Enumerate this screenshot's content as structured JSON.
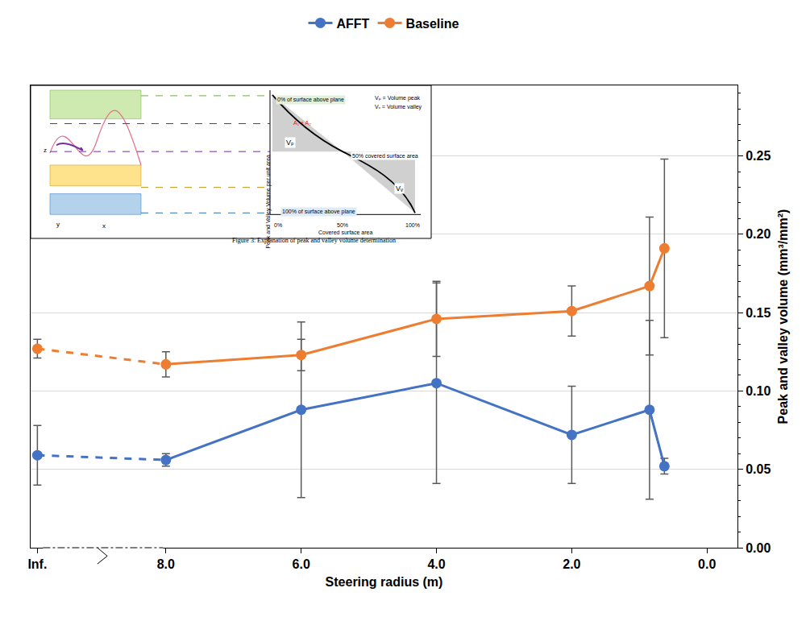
{
  "chart_data": {
    "type": "line",
    "x_title": "Steering radius (m)",
    "y_title": "Peak and valley volume (mm³/mm²)",
    "x": [
      9.9,
      8,
      6,
      4,
      2,
      0.85,
      0.63
    ],
    "series": [
      {
        "name": "AFFT",
        "color": "#4472C4",
        "marker": "circle",
        "values": [
          0.059,
          0.056,
          0.088,
          0.105,
          0.072,
          0.088,
          0.052
        ],
        "error": [
          0.019,
          0.004,
          0.056,
          0.064,
          0.031,
          0.057,
          0.005
        ]
      },
      {
        "name": "Baseline",
        "color": "#ED7D31",
        "marker": "circle",
        "values": [
          0.127,
          0.117,
          0.123,
          0.146,
          0.151,
          0.167,
          0.191
        ],
        "error": [
          0.006,
          0.008,
          0.01,
          0.024,
          0.016,
          0.044,
          0.057
        ]
      }
    ],
    "xlim": [
      10,
      -0.45
    ],
    "xticks": [
      {
        "value": 9.9,
        "label": "Inf."
      },
      {
        "value": 8,
        "label": "8.0"
      },
      {
        "value": 6,
        "label": "6.0"
      },
      {
        "value": 4,
        "label": "4.0"
      },
      {
        "value": 2,
        "label": "2.0"
      },
      {
        "value": 0,
        "label": "0.0"
      }
    ],
    "ylim": [
      0,
      0.295
    ],
    "yticks": [
      {
        "value": 0,
        "label": "0.00"
      },
      {
        "value": 0.05,
        "label": "0.05"
      },
      {
        "value": 0.1,
        "label": "0.10"
      },
      {
        "value": 0.15,
        "label": "0.15"
      },
      {
        "value": 0.2,
        "label": "0.20"
      },
      {
        "value": 0.25,
        "label": "0.25"
      }
    ],
    "grid": true,
    "legend": "top"
  },
  "inset": {
    "caption": "Figure 3: Explanation of peak and valley volume determination",
    "y_label": "Peak and Valley Volume per unit area",
    "x_label": "Covered surface area",
    "x_ticks": [
      "0%",
      "50%",
      "100%"
    ],
    "notes": [
      "0% of surface above plane",
      "50% covered surface area",
      "100% of surface above plane"
    ],
    "key": [
      "Vₚ = Volume peak",
      "Vᵥ = Volume valley"
    ],
    "areas": [
      "Vₚ",
      "Vᵥ"
    ],
    "plane_label": "A₁ + A₂",
    "axes": [
      "z",
      "x",
      "y"
    ]
  }
}
